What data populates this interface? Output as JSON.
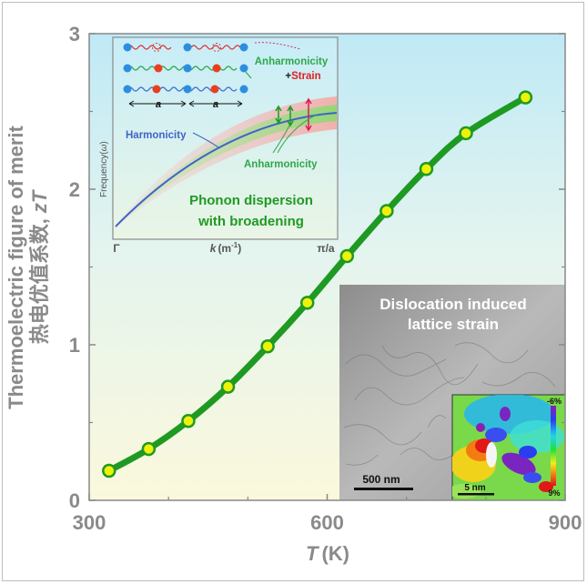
{
  "chart_data": {
    "type": "line",
    "x": [
      325,
      375,
      425,
      475,
      525,
      575,
      625,
      675,
      725,
      775,
      850
    ],
    "series": [
      {
        "values": [
          0.19,
          0.33,
          0.51,
          0.73,
          0.99,
          1.27,
          1.57,
          1.86,
          2.13,
          2.36,
          2.59
        ]
      }
    ],
    "xlabel_var": "T",
    "xlabel_unit": "(K)",
    "ylabel_line1": "Thermoelectric figure of merit",
    "ylabel_line2": "热电优值系数,",
    "ylabel_var": "zT",
    "xlim": [
      300,
      900
    ],
    "ylim": [
      0,
      3
    ],
    "xticks": [
      "300",
      "600",
      "900"
    ],
    "yticks": [
      "0",
      "1",
      "2",
      "3"
    ],
    "line_color": "#1e9a22",
    "marker_fill": "#eef20a",
    "background_gradient": [
      "#bfe9f6",
      "#fbf8dc"
    ],
    "grid": false
  },
  "inset_dispersion": {
    "labels": {
      "anharmonicity_strain_a": "Anharmonicity",
      "anharmonicity_strain_b": "+",
      "strain": "Strain",
      "harmonicity": "Harmonicity",
      "anharmonicity": "Anharmonicity",
      "frequency": "Frequency(",
      "omega": "ω",
      "frequency_close": ")",
      "lattice_a1": "a",
      "lattice_a2": "a",
      "caption_line1": "Phonon dispersion",
      "caption_line2": "with broadening",
      "tick_gamma": "Γ",
      "tick_k": "k",
      "tick_k_unit": "(m",
      "tick_k_exp": "-1",
      "tick_k_close": ")",
      "tick_pi": "π/a"
    }
  },
  "inset_microscopy": {
    "title_line1": "Dislocation induced",
    "title_line2": "lattice strain",
    "scale_bar": "500 nm",
    "strain_map": {
      "scale_bar": "5 nm",
      "colorbar_max": "-6%",
      "colorbar_min": "9%"
    }
  }
}
